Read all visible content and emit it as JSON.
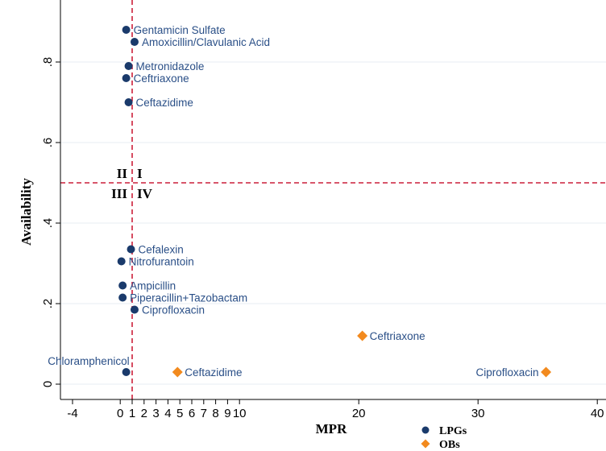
{
  "chart_data": {
    "type": "scatter",
    "xlabel": "MPR",
    "ylabel": "Availability",
    "xlim": [
      -4,
      40
    ],
    "ylim": [
      0,
      0.9
    ],
    "x_ticks": [
      {
        "value": -4,
        "label": "-4"
      },
      {
        "value": 0,
        "label": "0"
      },
      {
        "value": 1,
        "label": "1"
      },
      {
        "value": 2,
        "label": "2"
      },
      {
        "value": 3,
        "label": "3"
      },
      {
        "value": 4,
        "label": "4"
      },
      {
        "value": 5,
        "label": "5"
      },
      {
        "value": 6,
        "label": "6"
      },
      {
        "value": 7,
        "label": "7"
      },
      {
        "value": 8,
        "label": "8"
      },
      {
        "value": 9,
        "label": "9"
      },
      {
        "value": 10,
        "label": "10"
      },
      {
        "value": 20,
        "label": "20"
      },
      {
        "value": 30,
        "label": "30"
      },
      {
        "value": 40,
        "label": "40"
      }
    ],
    "y_ticks": [
      {
        "value": 0,
        "label": "0"
      },
      {
        "value": 0.2,
        "label": ".2"
      },
      {
        "value": 0.4,
        "label": ".4"
      },
      {
        "value": 0.6,
        "label": ".6"
      },
      {
        "value": 0.8,
        "label": ".8"
      }
    ],
    "reference_lines": {
      "x": 1,
      "y": 0.5,
      "color": "#cc1f3a",
      "style": "dashed"
    },
    "quadrant_labels": [
      {
        "text": "I",
        "quadrant": "top-right"
      },
      {
        "text": "II",
        "quadrant": "top-left"
      },
      {
        "text": "III",
        "quadrant": "bottom-left"
      },
      {
        "text": "IV",
        "quadrant": "bottom-right"
      }
    ],
    "grid": "horizontal",
    "legend_position": "bottom-center",
    "series": [
      {
        "name": "LPGs",
        "color": "#1a3a6b",
        "marker": "circle",
        "points": [
          {
            "label": "Gentamicin Sulfate",
            "x": 0.5,
            "y": 0.88,
            "label_side": "right"
          },
          {
            "label": "Amoxicillin/Clavulanic Acid",
            "x": 1.2,
            "y": 0.85,
            "label_side": "right"
          },
          {
            "label": "Metronidazole",
            "x": 0.7,
            "y": 0.79,
            "label_side": "right"
          },
          {
            "label": "Ceftriaxone",
            "x": 0.5,
            "y": 0.76,
            "label_side": "right"
          },
          {
            "label": "Ceftazidime",
            "x": 0.7,
            "y": 0.7,
            "label_side": "right"
          },
          {
            "label": "Cefalexin",
            "x": 0.9,
            "y": 0.335,
            "label_side": "right"
          },
          {
            "label": "Nitrofurantoin",
            "x": 0.1,
            "y": 0.305,
            "label_side": "right"
          },
          {
            "label": "Ampicillin",
            "x": 0.2,
            "y": 0.245,
            "label_side": "right"
          },
          {
            "label": "Piperacillin+Tazobactam",
            "x": 0.2,
            "y": 0.215,
            "label_side": "right"
          },
          {
            "label": "Ciprofloxacin",
            "x": 1.2,
            "y": 0.185,
            "label_side": "right"
          },
          {
            "label": "Chloramphenicol",
            "x": 0.5,
            "y": 0.03,
            "label_side": "above-left"
          }
        ]
      },
      {
        "name": "OBs",
        "color": "#f28a1e",
        "marker": "diamond",
        "points": [
          {
            "label": "Ceftriaxone",
            "x": 20.3,
            "y": 0.12,
            "label_side": "right"
          },
          {
            "label": "Ceftazidime",
            "x": 4.8,
            "y": 0.03,
            "label_side": "right"
          },
          {
            "label": "Ciprofloxacin",
            "x": 35.7,
            "y": 0.03,
            "label_side": "left"
          }
        ]
      }
    ]
  }
}
